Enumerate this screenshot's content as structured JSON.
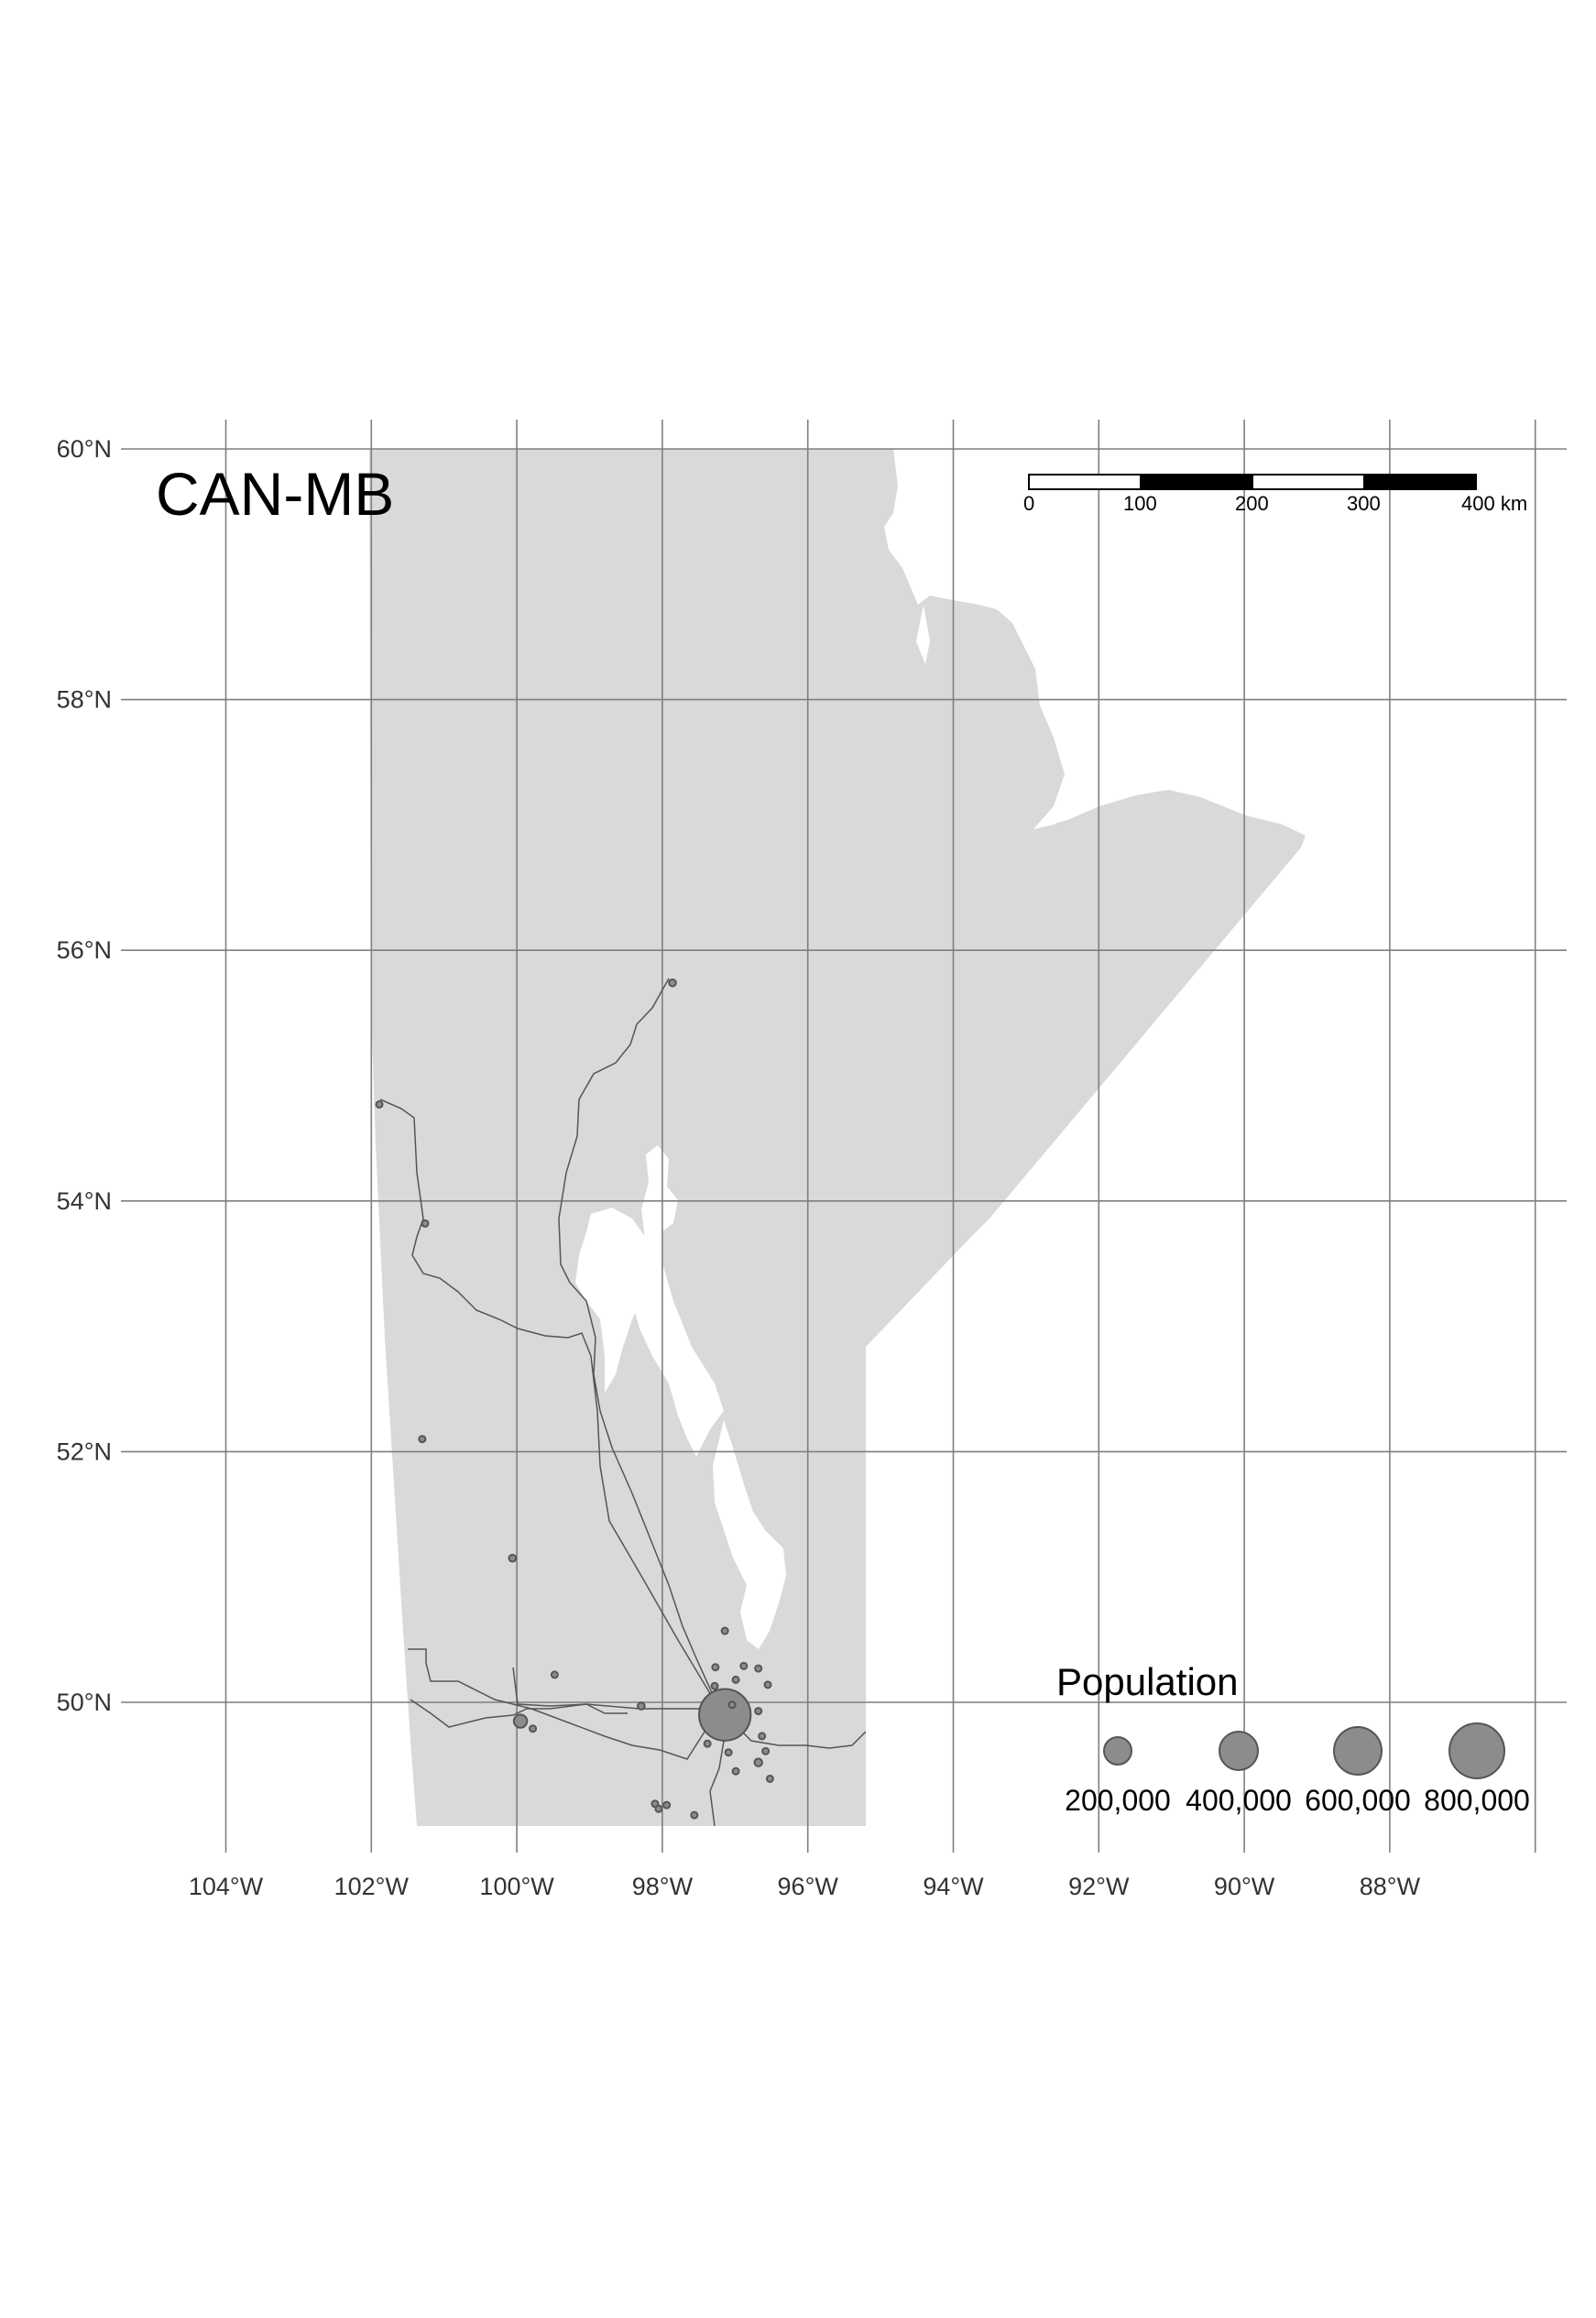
{
  "map": {
    "title": "CAN-MB",
    "region_fill": "#d9d9d9",
    "grid_color": "#7f7f7f",
    "graticule": {
      "lon_labels": [
        "104°W",
        "102°W",
        "100°W",
        "98°W",
        "96°W",
        "94°W",
        "92°W",
        "90°W",
        "88°W"
      ],
      "lat_labels": [
        "60°N",
        "58°N",
        "56°N",
        "54°N",
        "52°N",
        "50°N"
      ]
    },
    "scale_bar": {
      "labels": [
        "0",
        "100",
        "200",
        "300",
        "400 km"
      ]
    },
    "legend": {
      "title": "Population",
      "symbol_color": "#8c8c8c",
      "entries": [
        {
          "value": 200000,
          "label": "200,000"
        },
        {
          "value": 400000,
          "label": "400,000"
        },
        {
          "value": 600000,
          "label": "600,000"
        },
        {
          "value": 800000,
          "label": "800,000"
        }
      ]
    },
    "cities": [
      {
        "lon": -97.14,
        "lat": 49.9,
        "population": 705000
      },
      {
        "lon": -99.95,
        "lat": 49.85,
        "population": 46000
      },
      {
        "lon": -101.89,
        "lat": 54.77,
        "population": 6000
      },
      {
        "lon": -101.26,
        "lat": 53.82,
        "population": 6000
      },
      {
        "lon": -97.86,
        "lat": 55.74,
        "population": 13000
      },
      {
        "lon": -101.3,
        "lat": 52.1,
        "population": 3000
      },
      {
        "lon": -100.06,
        "lat": 51.15,
        "population": 13000
      },
      {
        "lon": -98.29,
        "lat": 49.97,
        "population": 13000
      },
      {
        "lon": -99.48,
        "lat": 50.22,
        "population": 4000
      },
      {
        "lon": -97.14,
        "lat": 50.57,
        "population": 8000
      },
      {
        "lon": -96.68,
        "lat": 49.52,
        "population": 16000
      },
      {
        "lon": -96.99,
        "lat": 49.45,
        "population": 6000
      },
      {
        "lon": -97.94,
        "lat": 49.18,
        "population": 8000
      },
      {
        "lon": -98.1,
        "lat": 49.19,
        "population": 5000
      },
      {
        "lon": -98.05,
        "lat": 49.15,
        "population": 4000
      },
      {
        "lon": -96.68,
        "lat": 49.93,
        "population": 10000
      },
      {
        "lon": -96.99,
        "lat": 50.18,
        "population": 8000
      },
      {
        "lon": -96.88,
        "lat": 50.29,
        "population": 7000
      },
      {
        "lon": -96.55,
        "lat": 50.14,
        "population": 4000
      },
      {
        "lon": -97.28,
        "lat": 50.13,
        "population": 5000
      },
      {
        "lon": -97.27,
        "lat": 50.28,
        "population": 4000
      },
      {
        "lon": -96.68,
        "lat": 50.27,
        "population": 5000
      },
      {
        "lon": -97.04,
        "lat": 49.98,
        "population": 5000
      },
      {
        "lon": -97.38,
        "lat": 49.67,
        "population": 4000
      },
      {
        "lon": -96.63,
        "lat": 49.73,
        "population": 4000
      },
      {
        "lon": -96.58,
        "lat": 49.61,
        "population": 3000
      },
      {
        "lon": -96.52,
        "lat": 49.39,
        "population": 3000
      },
      {
        "lon": -97.09,
        "lat": 49.6,
        "population": 3000
      },
      {
        "lon": -97.56,
        "lat": 49.1,
        "population": 2500
      },
      {
        "lon": -99.78,
        "lat": 49.79,
        "population": 3000
      }
    ]
  }
}
